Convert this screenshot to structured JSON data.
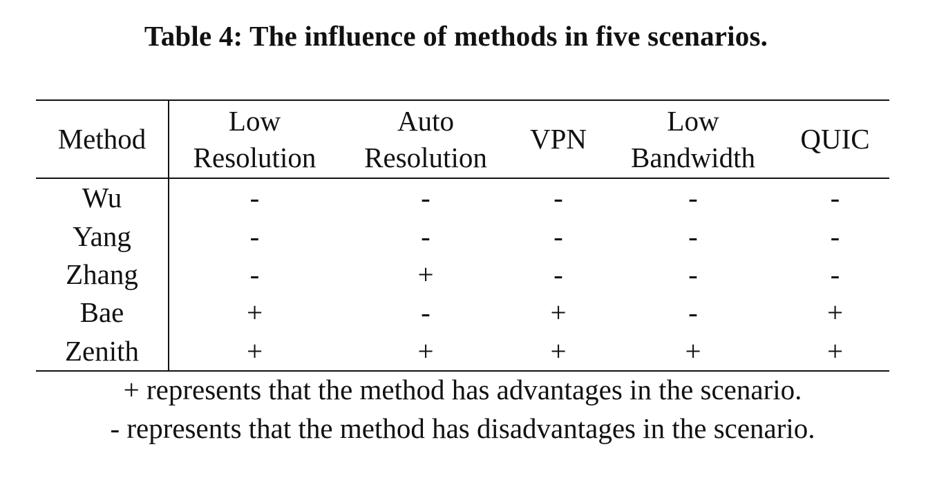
{
  "caption": "Table 4: The influence of methods in five scenarios.",
  "table": {
    "headers": [
      {
        "line1": "Method",
        "line2": ""
      },
      {
        "line1": "Low",
        "line2": "Resolution"
      },
      {
        "line1": "Auto",
        "line2": "Resolution"
      },
      {
        "line1": "VPN",
        "line2": ""
      },
      {
        "line1": "Low",
        "line2": "Bandwidth"
      },
      {
        "line1": "QUIC",
        "line2": ""
      }
    ],
    "rows": [
      {
        "method": "Wu",
        "cells": [
          "-",
          "-",
          "-",
          "-",
          "-"
        ]
      },
      {
        "method": "Yang",
        "cells": [
          "-",
          "-",
          "-",
          "-",
          "-"
        ]
      },
      {
        "method": "Zhang",
        "cells": [
          "-",
          "+",
          "-",
          "-",
          "-"
        ]
      },
      {
        "method": "Bae",
        "cells": [
          "+",
          "-",
          "+",
          "-",
          "+"
        ]
      },
      {
        "method": "Zenith",
        "cells": [
          "+",
          "+",
          "+",
          "+",
          "+"
        ]
      }
    ]
  },
  "notes": [
    "+ represents that the method has advantages in the scenario.",
    "- represents that the method has disadvantages in the scenario."
  ]
}
